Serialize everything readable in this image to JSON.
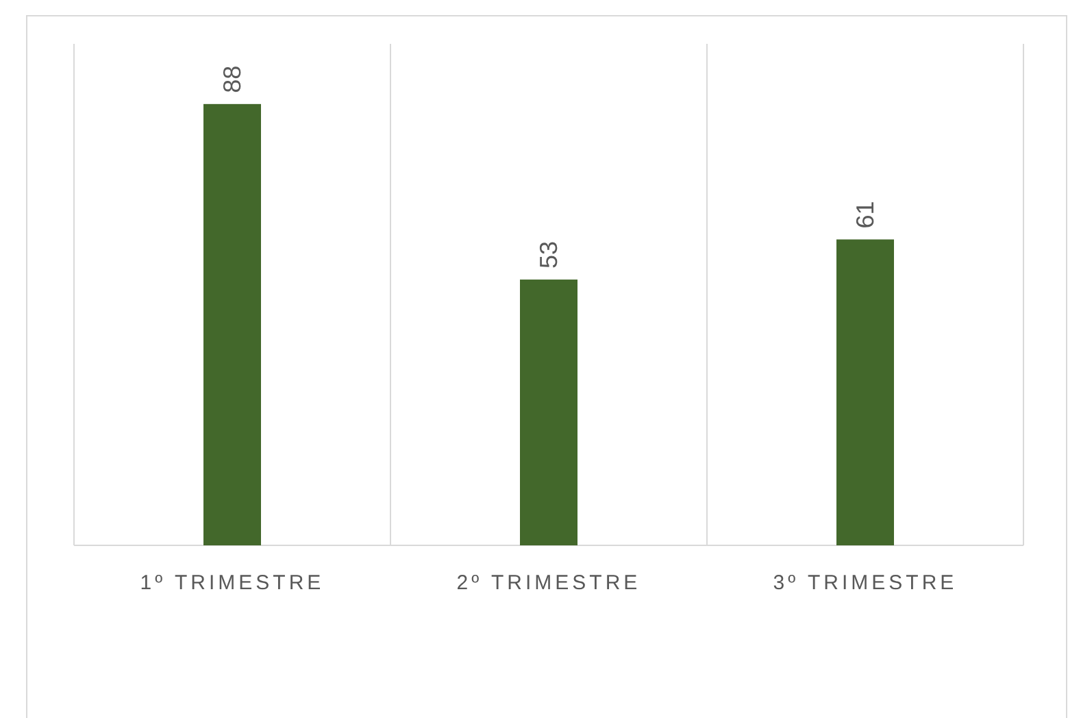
{
  "chart_data": {
    "type": "bar",
    "categories": [
      "1º TRIMESTRE",
      "2º TRIMESTRE",
      "3º TRIMESTRE"
    ],
    "values": [
      88,
      53,
      61
    ],
    "color": "#43682b",
    "ylim": [
      0,
      100
    ],
    "data_labels": true,
    "grid": "x",
    "tick_labels": "x"
  }
}
